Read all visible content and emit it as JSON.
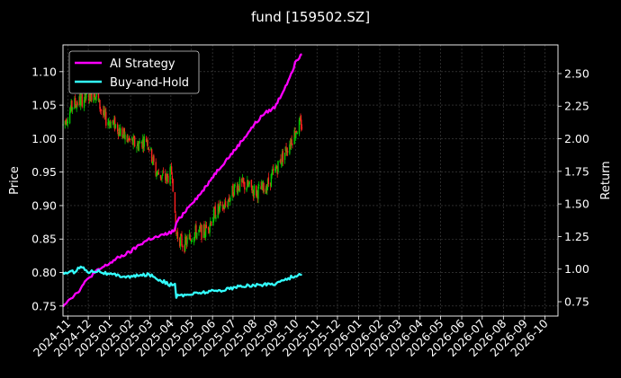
{
  "chart_data": {
    "type": "candlestick",
    "title": "fund [159502.SZ]",
    "ylabel_left": "Price",
    "ylabel_right": "Return",
    "ylim_left": [
      0.735,
      1.14
    ],
    "ylim_right": [
      0.64,
      2.72
    ],
    "xlim": [
      "2024-10-25",
      "2026-10-20"
    ],
    "grid": true,
    "legend_position": "top-left",
    "y_ticks_left": [
      "0.75",
      "0.80",
      "0.85",
      "0.90",
      "0.95",
      "1.00",
      "1.05",
      "1.10"
    ],
    "y_ticks_right": [
      "0.75",
      "1.00",
      "1.25",
      "1.50",
      "1.75",
      "2.00",
      "2.25",
      "2.50"
    ],
    "x_ticks": [
      "2024-11",
      "2024-12",
      "2025-01",
      "2025-02",
      "2025-03",
      "2025-04",
      "2025-05",
      "2025-06",
      "2025-07",
      "2025-08",
      "2025-09",
      "2025-10",
      "2025-11",
      "2025-12",
      "2026-01",
      "2026-02",
      "2026-03",
      "2026-04",
      "2026-05",
      "2026-06",
      "2026-07",
      "2026-08",
      "2026-09",
      "2026-10"
    ],
    "price_series": {
      "up_color": "#00cc00",
      "down_color": "#ff2020",
      "anchors": [
        [
          "2024-10-25",
          1.02
        ],
        [
          "2024-11-08",
          1.05
        ],
        [
          "2024-11-25",
          1.06
        ],
        [
          "2024-12-10",
          1.07
        ],
        [
          "2024-12-25",
          1.03
        ],
        [
          "2025-01-10",
          1.02
        ],
        [
          "2025-01-25",
          1.0
        ],
        [
          "2025-02-10",
          0.99
        ],
        [
          "2025-02-25",
          1.0
        ],
        [
          "2025-03-10",
          0.95
        ],
        [
          "2025-03-25",
          0.94
        ],
        [
          "2025-04-03",
          0.95
        ],
        [
          "2025-04-08",
          0.86
        ],
        [
          "2025-04-20",
          0.84
        ],
        [
          "2025-05-05",
          0.86
        ],
        [
          "2025-05-20",
          0.86
        ],
        [
          "2025-06-05",
          0.89
        ],
        [
          "2025-06-20",
          0.9
        ],
        [
          "2025-07-05",
          0.93
        ],
        [
          "2025-07-20",
          0.93
        ],
        [
          "2025-08-05",
          0.92
        ],
        [
          "2025-08-20",
          0.93
        ],
        [
          "2025-09-05",
          0.96
        ],
        [
          "2025-09-20",
          0.99
        ],
        [
          "2025-10-05",
          1.02
        ],
        [
          "2025-10-10",
          1.02
        ]
      ]
    },
    "series": [
      {
        "name": "AI Strategy",
        "color": "#ff00ff",
        "axis": "right",
        "points": [
          [
            "2024-10-25",
            0.72
          ],
          [
            "2024-11-01",
            0.76
          ],
          [
            "2024-11-15",
            0.82
          ],
          [
            "2024-11-25",
            0.89
          ],
          [
            "2024-12-05",
            0.95
          ],
          [
            "2024-12-15",
            0.99
          ],
          [
            "2024-12-31",
            1.04
          ],
          [
            "2025-01-15",
            1.09
          ],
          [
            "2025-01-31",
            1.13
          ],
          [
            "2025-02-15",
            1.19
          ],
          [
            "2025-02-28",
            1.23
          ],
          [
            "2025-03-15",
            1.25
          ],
          [
            "2025-03-31",
            1.28
          ],
          [
            "2025-04-07",
            1.3
          ],
          [
            "2025-04-08",
            1.35
          ],
          [
            "2025-04-30",
            1.5
          ],
          [
            "2025-05-15",
            1.58
          ],
          [
            "2025-05-31",
            1.7
          ],
          [
            "2025-06-15",
            1.8
          ],
          [
            "2025-06-30",
            1.89
          ],
          [
            "2025-07-15",
            1.99
          ],
          [
            "2025-07-31",
            2.1
          ],
          [
            "2025-08-15",
            2.19
          ],
          [
            "2025-08-31",
            2.24
          ],
          [
            "2025-09-10",
            2.34
          ],
          [
            "2025-09-20",
            2.45
          ],
          [
            "2025-10-01",
            2.59
          ],
          [
            "2025-10-10",
            2.66
          ]
        ]
      },
      {
        "name": "Buy-and-Hold",
        "color": "#33ffff",
        "axis": "right",
        "points": [
          [
            "2024-10-25",
            0.97
          ],
          [
            "2024-11-10",
            0.98
          ],
          [
            "2024-11-20",
            1.02
          ],
          [
            "2024-12-01",
            0.98
          ],
          [
            "2024-12-15",
            0.99
          ],
          [
            "2024-12-31",
            0.96
          ],
          [
            "2025-01-31",
            0.94
          ],
          [
            "2025-02-28",
            0.96
          ],
          [
            "2025-03-15",
            0.92
          ],
          [
            "2025-03-31",
            0.88
          ],
          [
            "2025-04-07",
            0.88
          ],
          [
            "2025-04-08",
            0.79
          ],
          [
            "2025-04-20",
            0.8
          ],
          [
            "2025-05-15",
            0.82
          ],
          [
            "2025-06-15",
            0.84
          ],
          [
            "2025-07-15",
            0.87
          ],
          [
            "2025-08-15",
            0.88
          ],
          [
            "2025-09-01",
            0.89
          ],
          [
            "2025-09-15",
            0.92
          ],
          [
            "2025-10-01",
            0.95
          ],
          [
            "2025-10-10",
            0.96
          ]
        ]
      }
    ]
  }
}
